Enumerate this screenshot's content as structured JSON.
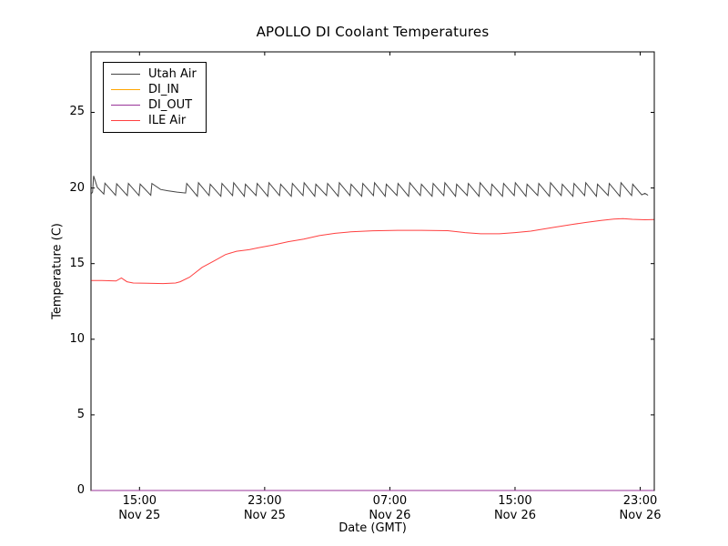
{
  "figure": {
    "background": "#ffffff",
    "frame_color": "#000000"
  },
  "chart_data": {
    "type": "line",
    "title": "APOLLO DI Coolant Temperatures",
    "xlabel": "Date (GMT)",
    "ylabel": "Temperature (C)",
    "grid": false,
    "x_unit": "hours since Nov 25 00:00 GMT",
    "xlim_hours": [
      11.9,
      47.9
    ],
    "ylim": [
      0,
      29
    ],
    "y_ticks": [
      0,
      5,
      10,
      15,
      20,
      25
    ],
    "x_ticks": [
      {
        "hour": 15,
        "time": "15:00",
        "date": "Nov 25"
      },
      {
        "hour": 23,
        "time": "23:00",
        "date": "Nov 25"
      },
      {
        "hour": 31,
        "time": "07:00",
        "date": "Nov 26"
      },
      {
        "hour": 39,
        "time": "15:00",
        "date": "Nov 26"
      },
      {
        "hour": 47,
        "time": "23:00",
        "date": "Nov 26"
      }
    ],
    "legend": {
      "location": "upper left",
      "entries": [
        "Utah Air",
        "DI_IN",
        "DI_OUT",
        "ILE Air"
      ]
    },
    "series": [
      {
        "name": "Utah Air",
        "color": "#444444",
        "description": "Sawtooth oscillation ~0.75 h period between ~19.45 C and ~20.35 C; smooth lull 16.4-18.0 h",
        "points": [
          [
            11.92,
            19.62
          ],
          [
            12.0,
            19.72
          ],
          [
            12.07,
            20.8
          ],
          [
            12.3,
            20.05
          ],
          [
            12.72,
            19.6
          ],
          [
            12.79,
            20.32
          ],
          [
            13.47,
            19.52
          ],
          [
            13.54,
            20.28
          ],
          [
            14.22,
            19.5
          ],
          [
            14.29,
            20.3
          ],
          [
            14.97,
            19.5
          ],
          [
            15.04,
            20.26
          ],
          [
            15.72,
            19.52
          ],
          [
            15.79,
            20.3
          ],
          [
            16.35,
            19.9
          ],
          [
            16.8,
            19.82
          ],
          [
            17.4,
            19.73
          ],
          [
            17.95,
            19.67
          ],
          [
            18.02,
            20.3
          ],
          [
            18.7,
            19.45
          ],
          [
            18.77,
            20.35
          ],
          [
            19.45,
            19.5
          ],
          [
            19.52,
            20.25
          ],
          [
            20.2,
            19.45
          ],
          [
            20.27,
            20.3
          ],
          [
            20.95,
            19.5
          ],
          [
            21.02,
            20.35
          ],
          [
            21.7,
            19.45
          ],
          [
            21.77,
            20.25
          ],
          [
            22.45,
            19.5
          ],
          [
            22.52,
            20.3
          ],
          [
            23.2,
            19.45
          ],
          [
            23.27,
            20.35
          ],
          [
            23.95,
            19.5
          ],
          [
            24.02,
            20.25
          ],
          [
            24.7,
            19.45
          ],
          [
            24.77,
            20.3
          ],
          [
            25.45,
            19.5
          ],
          [
            25.52,
            20.35
          ],
          [
            26.2,
            19.45
          ],
          [
            26.27,
            20.25
          ],
          [
            26.95,
            19.5
          ],
          [
            27.02,
            20.3
          ],
          [
            27.7,
            19.45
          ],
          [
            27.77,
            20.35
          ],
          [
            28.45,
            19.5
          ],
          [
            28.52,
            20.25
          ],
          [
            29.2,
            19.45
          ],
          [
            29.27,
            20.3
          ],
          [
            29.95,
            19.5
          ],
          [
            30.02,
            20.35
          ],
          [
            30.7,
            19.45
          ],
          [
            30.77,
            20.25
          ],
          [
            31.45,
            19.5
          ],
          [
            31.52,
            20.3
          ],
          [
            32.2,
            19.45
          ],
          [
            32.27,
            20.35
          ],
          [
            32.95,
            19.5
          ],
          [
            33.02,
            20.25
          ],
          [
            33.7,
            19.45
          ],
          [
            33.77,
            20.3
          ],
          [
            34.45,
            19.5
          ],
          [
            34.52,
            20.35
          ],
          [
            35.2,
            19.45
          ],
          [
            35.27,
            20.25
          ],
          [
            35.95,
            19.5
          ],
          [
            36.02,
            20.3
          ],
          [
            36.7,
            19.45
          ],
          [
            36.77,
            20.35
          ],
          [
            37.45,
            19.5
          ],
          [
            37.52,
            20.25
          ],
          [
            38.2,
            19.45
          ],
          [
            38.27,
            20.3
          ],
          [
            38.95,
            19.5
          ],
          [
            39.02,
            20.35
          ],
          [
            39.7,
            19.45
          ],
          [
            39.77,
            20.25
          ],
          [
            40.45,
            19.5
          ],
          [
            40.52,
            20.3
          ],
          [
            41.2,
            19.45
          ],
          [
            41.27,
            20.35
          ],
          [
            41.95,
            19.5
          ],
          [
            42.02,
            20.25
          ],
          [
            42.7,
            19.45
          ],
          [
            42.77,
            20.3
          ],
          [
            43.45,
            19.5
          ],
          [
            43.52,
            20.35
          ],
          [
            44.2,
            19.45
          ],
          [
            44.27,
            20.25
          ],
          [
            44.95,
            19.5
          ],
          [
            45.02,
            20.3
          ],
          [
            45.7,
            19.45
          ],
          [
            45.77,
            20.35
          ],
          [
            46.45,
            19.5
          ],
          [
            46.52,
            20.25
          ],
          [
            47.1,
            19.55
          ],
          [
            47.3,
            19.65
          ],
          [
            47.5,
            19.52
          ]
        ]
      },
      {
        "name": "DI_IN",
        "color": "#ffa500",
        "description": "Flat at 0 C along bottom axis (no coolant reading visible)",
        "points": [
          [
            11.92,
            0
          ],
          [
            47.87,
            0
          ]
        ]
      },
      {
        "name": "DI_OUT",
        "color": "#993399",
        "description": "Flat at 0 C along bottom axis (no coolant reading visible)",
        "points": [
          [
            11.92,
            0
          ],
          [
            47.87,
            0
          ]
        ]
      },
      {
        "name": "ILE Air",
        "color": "#ff4040",
        "points": [
          [
            11.92,
            13.88
          ],
          [
            12.6,
            13.88
          ],
          [
            13.5,
            13.85
          ],
          [
            13.84,
            14.05
          ],
          [
            14.2,
            13.8
          ],
          [
            14.6,
            13.72
          ],
          [
            15.5,
            13.7
          ],
          [
            16.5,
            13.68
          ],
          [
            17.3,
            13.72
          ],
          [
            17.6,
            13.8
          ],
          [
            18.2,
            14.1
          ],
          [
            19.0,
            14.75
          ],
          [
            19.8,
            15.2
          ],
          [
            20.5,
            15.6
          ],
          [
            21.2,
            15.82
          ],
          [
            22.0,
            15.92
          ],
          [
            22.6,
            16.05
          ],
          [
            23.5,
            16.22
          ],
          [
            24.5,
            16.45
          ],
          [
            25.5,
            16.62
          ],
          [
            26.5,
            16.85
          ],
          [
            27.5,
            17.0
          ],
          [
            28.5,
            17.1
          ],
          [
            29.9,
            17.17
          ],
          [
            31.5,
            17.2
          ],
          [
            33.0,
            17.2
          ],
          [
            34.7,
            17.18
          ],
          [
            35.8,
            17.05
          ],
          [
            36.8,
            16.97
          ],
          [
            38.0,
            16.97
          ],
          [
            39.0,
            17.05
          ],
          [
            40.0,
            17.15
          ],
          [
            41.5,
            17.4
          ],
          [
            42.7,
            17.6
          ],
          [
            43.5,
            17.72
          ],
          [
            44.5,
            17.85
          ],
          [
            45.3,
            17.95
          ],
          [
            45.9,
            17.98
          ],
          [
            46.5,
            17.93
          ],
          [
            47.3,
            17.9
          ],
          [
            47.87,
            17.92
          ]
        ]
      }
    ]
  }
}
